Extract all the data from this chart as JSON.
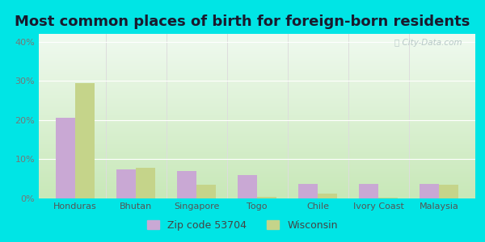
{
  "title": "Most common places of birth for foreign-born residents",
  "categories": [
    "Honduras",
    "Bhutan",
    "Singapore",
    "Togo",
    "Chile",
    "Ivory Coast",
    "Malaysia"
  ],
  "zip_values": [
    20.5,
    7.5,
    7.0,
    6.0,
    3.8,
    3.8,
    3.8
  ],
  "wi_values": [
    29.5,
    7.8,
    3.5,
    0.5,
    1.2,
    0.2,
    3.5
  ],
  "zip_color": "#c9a8d4",
  "wi_color": "#c5d48a",
  "ylim": [
    0,
    42
  ],
  "yticks": [
    0,
    10,
    20,
    30,
    40
  ],
  "outer_background": "#00e5e5",
  "bg_top_color": "#f0faf0",
  "bg_bottom_color": "#c8e8b8",
  "legend_zip": "Zip code 53704",
  "legend_wi": "Wisconsin",
  "title_fontsize": 13,
  "tick_fontsize": 8,
  "legend_fontsize": 9,
  "title_color": "#1a1a2e"
}
